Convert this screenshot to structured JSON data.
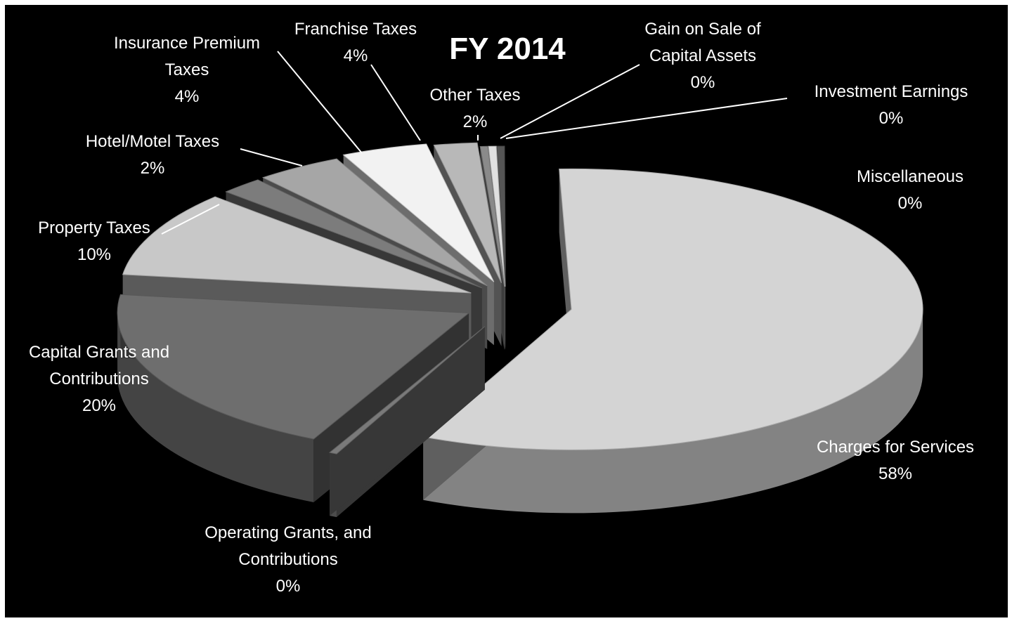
{
  "chart_data": {
    "type": "pie",
    "title": "FY 2014",
    "slices": [
      {
        "label": "Charges for Services",
        "percent_label": "58%",
        "value": 58,
        "color": "#d4d4d4"
      },
      {
        "label": "Operating Grants, and  Contributions",
        "percent_label": "0%",
        "value": 0.3,
        "color": "#7a7a7a"
      },
      {
        "label": "Capital Grants and Contributions",
        "percent_label": "20%",
        "value": 20,
        "color": "#6e6e6e"
      },
      {
        "label": "Property Taxes",
        "percent_label": "10%",
        "value": 10,
        "color": "#c8c8c8"
      },
      {
        "label": "Hotel/Motel Taxes",
        "percent_label": "2%",
        "value": 2,
        "color": "#7c7c7c"
      },
      {
        "label": "Insurance Premium Taxes",
        "percent_label": "4%",
        "value": 4,
        "color": "#a6a6a6"
      },
      {
        "label": "Franchise Taxes",
        "percent_label": "4%",
        "value": 4,
        "color": "#f2f2f2"
      },
      {
        "label": "Other Taxes",
        "percent_label": "2%",
        "value": 2,
        "color": "#b8b8b8"
      },
      {
        "label": "Gain on Sale of Capital Assets",
        "percent_label": "0%",
        "value": 0.3,
        "color": "#8a8a8a"
      },
      {
        "label": "Investment Earnings",
        "percent_label": "0%",
        "value": 0.2,
        "color": "#e0e0e0"
      },
      {
        "label": "Miscellaneous",
        "percent_label": "0%",
        "value": 0.1,
        "color": "#555555"
      }
    ],
    "background": "#000000",
    "text_color": "#ffffff",
    "style": "3d-exploded-pie"
  }
}
